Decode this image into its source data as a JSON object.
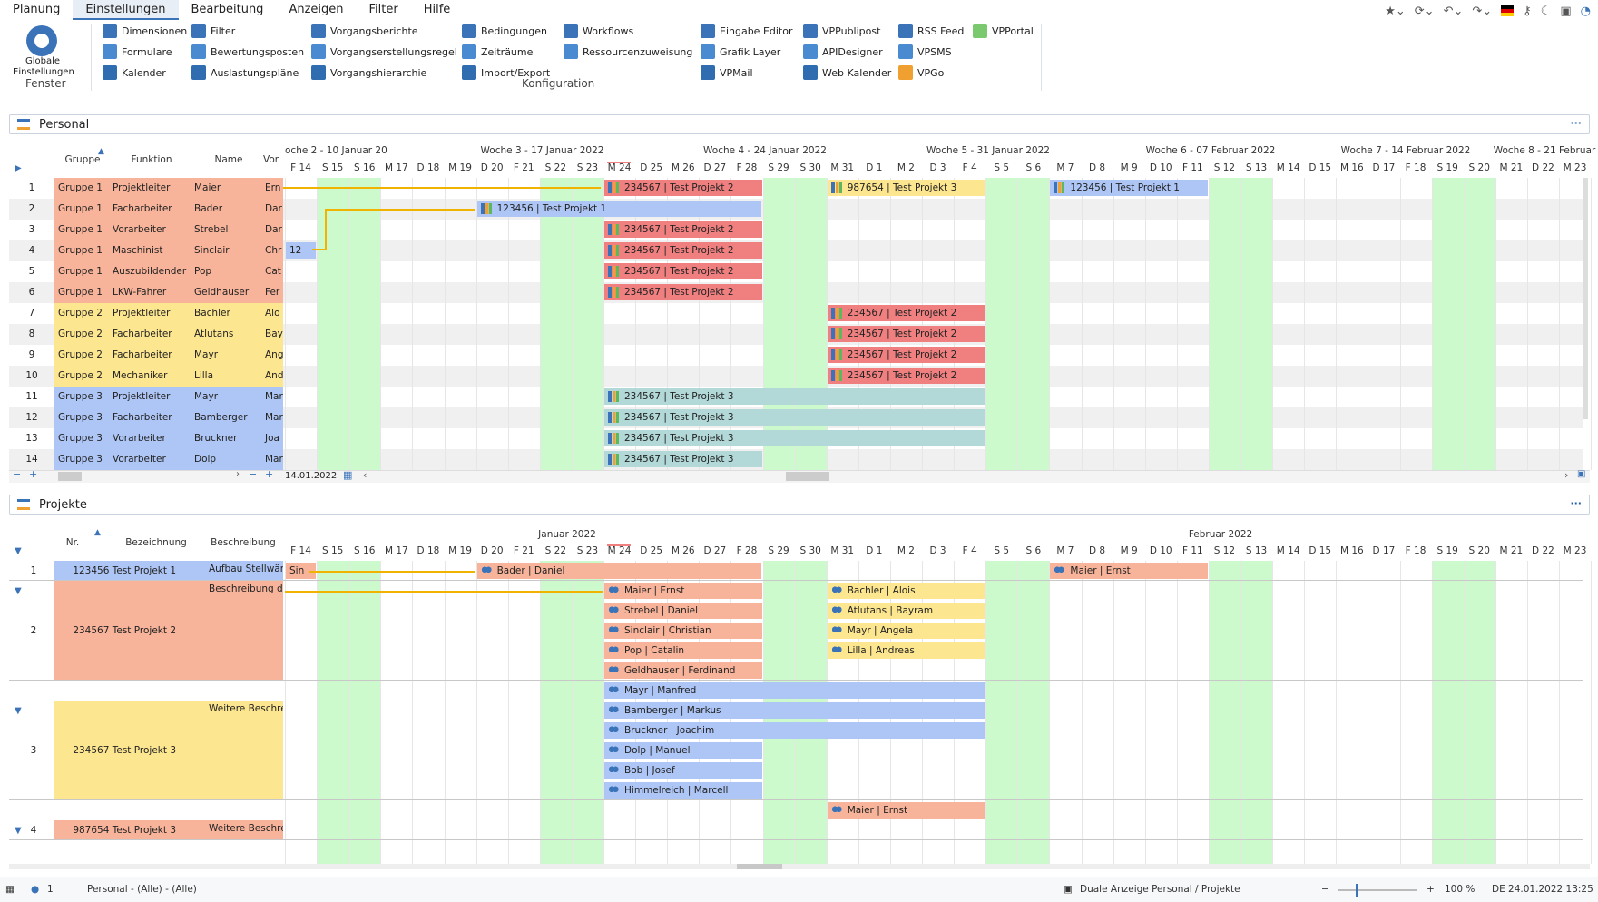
{
  "menu": [
    "Planung",
    "Einstellungen",
    "Bearbeitung",
    "Anzeigen",
    "Filter",
    "Hilfe"
  ],
  "ribbon": {
    "global": "Globale Einstellungen",
    "fenster": "Fenster",
    "konfiguration": "Konfiguration",
    "col1": [
      "Dimensionen",
      "Formulare",
      "Kalender"
    ],
    "col2": [
      "Filter",
      "Bewertungsposten",
      "Auslastungspläne"
    ],
    "col3": [
      "Vorgangsberichte",
      "Vorgangserstellungsregel",
      "Vorgangshierarchie"
    ],
    "col4": [
      "Bedingungen",
      "Zeiträume",
      "Import/Export"
    ],
    "col5": [
      "Workflows",
      "Ressourcenzuweisung"
    ],
    "col6": [
      "Eingabe Editor",
      "Grafik Layer",
      "VPMail"
    ],
    "col7": [
      "VPPublipost",
      "APIDesigner",
      "Web Kalender"
    ],
    "col8": [
      "RSS Feed",
      "VPSMS",
      "VPGo"
    ],
    "col9": [
      "VPPortal"
    ]
  },
  "colors": {
    "orange": "#f8b49a",
    "yellow": "#fde690",
    "blue": "#aec6f5",
    "teal": "#b2d8d8",
    "red": "#f08080",
    "green": "#cdfacd",
    "accent": "#3b73b9"
  },
  "personal": {
    "title": "Personal",
    "headers": [
      "Gruppe",
      "Funktion",
      "Name",
      "Vor"
    ],
    "weeks": [
      "oche 2 - 10 Januar 20",
      "Woche 3 - 17 Januar 2022",
      "Woche 4 - 24 Januar 2022",
      "Woche 5 - 31 Januar 2022",
      "Woche 6 - 07 Februar 2022",
      "Woche 7 - 14 Februar 2022",
      "Woche 8 - 21 Februar"
    ],
    "rows": [
      [
        "1",
        "Gruppe 1",
        "Projektleiter",
        "Maier",
        "Ern",
        "orange"
      ],
      [
        "2",
        "Gruppe 1",
        "Facharbeiter",
        "Bader",
        "Dar",
        "orange"
      ],
      [
        "3",
        "Gruppe 1",
        "Vorarbeiter",
        "Strebel",
        "Dar",
        "orange"
      ],
      [
        "4",
        "Gruppe 1",
        "Maschinist",
        "Sinclair",
        "Chr",
        "orange"
      ],
      [
        "5",
        "Gruppe 1",
        "Auszubildender",
        "Pop",
        "Cat",
        "orange"
      ],
      [
        "6",
        "Gruppe 1",
        "LKW-Fahrer",
        "Geldhauser",
        "Fer",
        "orange"
      ],
      [
        "7",
        "Gruppe 2",
        "Projektleiter",
        "Bachler",
        "Alo",
        "yellow"
      ],
      [
        "8",
        "Gruppe 2",
        "Facharbeiter",
        "Atlutans",
        "Bay",
        "yellow"
      ],
      [
        "9",
        "Gruppe 2",
        "Facharbeiter",
        "Mayr",
        "Ang",
        "yellow"
      ],
      [
        "10",
        "Gruppe 2",
        "Mechaniker",
        "Lilla",
        "And",
        "yellow"
      ],
      [
        "11",
        "Gruppe 3",
        "Projektleiter",
        "Mayr",
        "Mar",
        "blue"
      ],
      [
        "12",
        "Gruppe 3",
        "Facharbeiter",
        "Bamberger",
        "Mar",
        "blue"
      ],
      [
        "13",
        "Gruppe 3",
        "Vorarbeiter",
        "Bruckner",
        "Joa",
        "blue"
      ],
      [
        "14",
        "Gruppe 3",
        "Vorarbeiter",
        "Dolp",
        "Mar",
        "blue"
      ]
    ],
    "date": "14.01.2022"
  },
  "days": [
    "F 14",
    "S 15",
    "S 16",
    "M 17",
    "D 18",
    "M 19",
    "D 20",
    "F 21",
    "S 22",
    "S 23",
    "M 24",
    "D 25",
    "M 26",
    "D 27",
    "F 28",
    "S 29",
    "S 30",
    "M 31",
    "D 1",
    "M 2",
    "D 3",
    "F 4",
    "S 5",
    "S 6",
    "M 7",
    "D 8",
    "M 9",
    "D 10",
    "F 11",
    "S 12",
    "S 13",
    "M 14",
    "D 15",
    "M 16",
    "D 17",
    "F 18",
    "S 19",
    "S 20",
    "M 21",
    "D 22",
    "M 23"
  ],
  "projekte": {
    "title": "Projekte",
    "headers": [
      "Nr.",
      "Bezeichnung",
      "Beschreibung"
    ],
    "months": [
      "Januar 2022",
      "Februar 2022"
    ],
    "rows": [
      {
        "n": "1",
        "bez": "123456 Test Projekt 1",
        "desc": "Aufbau Stellwänd",
        "color": "blue"
      },
      {
        "n": "2",
        "bez": "234567 Test Projekt 2",
        "desc": "Beschreibung de",
        "color": "orange"
      },
      {
        "n": "3",
        "bez": "234567 Test Projekt 3",
        "desc": "Weitere Beschre",
        "color": "yellow"
      },
      {
        "n": "4",
        "bez": "987654 Test Projekt 3",
        "desc": "Weitere Beschre",
        "color": "orange"
      }
    ]
  },
  "pbars": [
    {
      "t": "234567 | Test Projekt 2",
      "c": "red",
      "r": 0,
      "d0": 10,
      "d1": 15
    },
    {
      "t": "987654 | Test Projekt 3",
      "c": "yellow",
      "r": 0,
      "d0": 17,
      "d1": 22
    },
    {
      "t": "123456 | Test Projekt 1",
      "c": "blue",
      "r": 0,
      "d0": 24,
      "d1": 29
    },
    {
      "t": "123456 | Test Projekt 1",
      "c": "blue",
      "r": 1,
      "d0": 6,
      "d1": 15
    },
    {
      "t": "234567 | Test Projekt 2",
      "c": "red",
      "r": 2,
      "d0": 10,
      "d1": 15
    },
    {
      "t": "12",
      "c": "blue",
      "r": 3,
      "d0": 0,
      "d1": 1
    },
    {
      "t": "234567 | Test Projekt 2",
      "c": "red",
      "r": 3,
      "d0": 10,
      "d1": 15
    },
    {
      "t": "234567 | Test Projekt 2",
      "c": "red",
      "r": 4,
      "d0": 10,
      "d1": 15
    },
    {
      "t": "234567 | Test Projekt 2",
      "c": "red",
      "r": 5,
      "d0": 10,
      "d1": 15
    },
    {
      "t": "234567 | Test Projekt 2",
      "c": "red",
      "r": 6,
      "d0": 17,
      "d1": 22
    },
    {
      "t": "234567 | Test Projekt 2",
      "c": "red",
      "r": 7,
      "d0": 17,
      "d1": 22
    },
    {
      "t": "234567 | Test Projekt 2",
      "c": "red",
      "r": 8,
      "d0": 17,
      "d1": 22
    },
    {
      "t": "234567 | Test Projekt 2",
      "c": "red",
      "r": 9,
      "d0": 17,
      "d1": 22
    },
    {
      "t": "234567 | Test Projekt 3",
      "c": "teal",
      "r": 10,
      "d0": 10,
      "d1": 22
    },
    {
      "t": "234567 | Test Projekt 3",
      "c": "teal",
      "r": 11,
      "d0": 10,
      "d1": 22
    },
    {
      "t": "234567 | Test Projekt 3",
      "c": "teal",
      "r": 12,
      "d0": 10,
      "d1": 22
    },
    {
      "t": "234567 | Test Projekt 3",
      "c": "teal",
      "r": 13,
      "d0": 10,
      "d1": 15
    }
  ],
  "jbars": [
    {
      "t": "Sin",
      "c": "orange",
      "r": 0,
      "d0": 0,
      "d1": 1,
      "icon": false
    },
    {
      "t": "Bader | Daniel",
      "c": "orange",
      "r": 0,
      "d0": 6,
      "d1": 15,
      "icon": true
    },
    {
      "t": "Maier | Ernst",
      "c": "orange",
      "r": 0,
      "d0": 24,
      "d1": 29,
      "icon": true
    },
    {
      "t": "Maier | Ernst",
      "c": "orange",
      "r": 1,
      "d0": 10,
      "d1": 15,
      "icon": true
    },
    {
      "t": "Strebel | Daniel",
      "c": "orange",
      "r": 2,
      "d0": 10,
      "d1": 15,
      "icon": true
    },
    {
      "t": "Sinclair | Christian",
      "c": "orange",
      "r": 3,
      "d0": 10,
      "d1": 15,
      "icon": true
    },
    {
      "t": "Pop | Catalin",
      "c": "orange",
      "r": 4,
      "d0": 10,
      "d1": 15,
      "icon": true
    },
    {
      "t": "Geldhauser | Ferdinand",
      "c": "orange",
      "r": 5,
      "d0": 10,
      "d1": 15,
      "icon": true
    },
    {
      "t": "Bachler | Alois",
      "c": "yellow",
      "r": 1,
      "d0": 17,
      "d1": 22,
      "icon": true
    },
    {
      "t": "Atlutans | Bayram",
      "c": "yellow",
      "r": 2,
      "d0": 17,
      "d1": 22,
      "icon": true
    },
    {
      "t": "Mayr | Angela",
      "c": "yellow",
      "r": 3,
      "d0": 17,
      "d1": 22,
      "icon": true
    },
    {
      "t": "Lilla | Andreas",
      "c": "yellow",
      "r": 4,
      "d0": 17,
      "d1": 22,
      "icon": true
    },
    {
      "t": "Mayr | Manfred",
      "c": "blue",
      "r": 6,
      "d0": 10,
      "d1": 22,
      "icon": true
    },
    {
      "t": "Bamberger | Markus",
      "c": "blue",
      "r": 7,
      "d0": 10,
      "d1": 22,
      "icon": true
    },
    {
      "t": "Bruckner | Joachim",
      "c": "blue",
      "r": 8,
      "d0": 10,
      "d1": 22,
      "icon": true
    },
    {
      "t": "Dolp | Manuel",
      "c": "blue",
      "r": 9,
      "d0": 10,
      "d1": 15,
      "icon": true
    },
    {
      "t": "Bob | Josef",
      "c": "blue",
      "r": 10,
      "d0": 10,
      "d1": 15,
      "icon": true
    },
    {
      "t": "Himmelreich | Marcell",
      "c": "blue",
      "r": 11,
      "d0": 10,
      "d1": 15,
      "icon": true
    },
    {
      "t": "Maier | Ernst",
      "c": "orange",
      "r": 12,
      "d0": 17,
      "d1": 22,
      "icon": true
    }
  ],
  "status": {
    "count": "1",
    "filter": "Personal - (Alle) - (Alle)",
    "view": "Duale Anzeige Personal / Projekte",
    "zoom": "100 %",
    "date": "DE 24.01.2022 13:25"
  }
}
